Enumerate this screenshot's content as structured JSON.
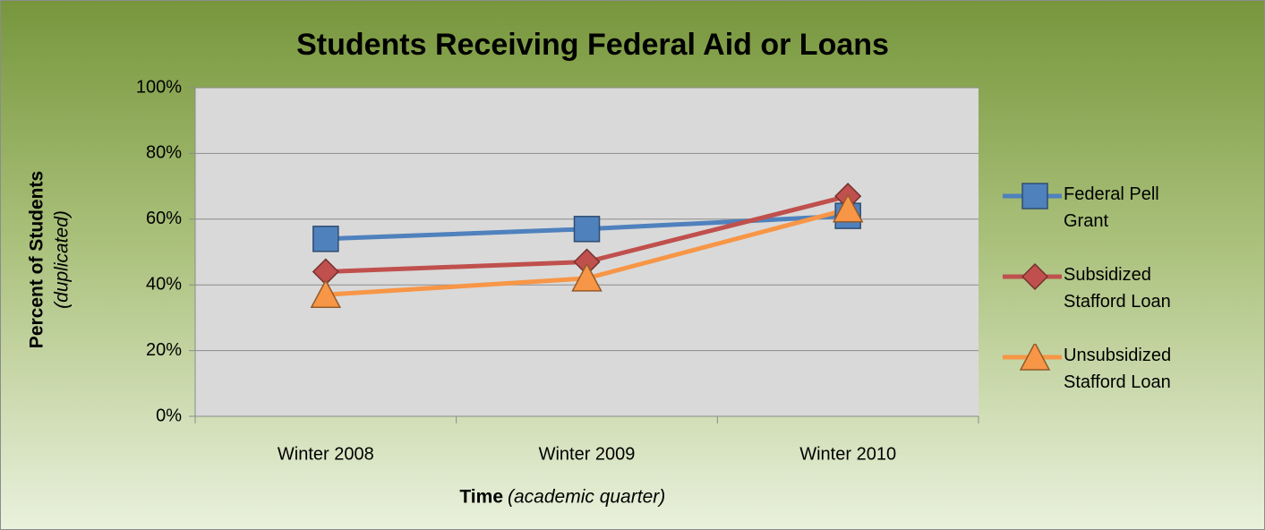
{
  "chart_data": {
    "type": "line",
    "title": "Students Receiving Federal Aid or Loans",
    "ylabel": "Percent of Students",
    "ylabel_note": "(duplicated)",
    "xlabel": "Time",
    "xlabel_note": "(academic quarter)",
    "categories": [
      "Winter 2008",
      "Winter 2009",
      "Winter 2010"
    ],
    "series": [
      {
        "name": "Federal Pell Grant",
        "color": "#4f81bd",
        "marker": "square",
        "values": [
          54,
          57,
          61
        ]
      },
      {
        "name": "Subsidized Stafford Loan",
        "color": "#c0504d",
        "marker": "diamond",
        "values": [
          44,
          47,
          67
        ]
      },
      {
        "name": "Unsubsidized Stafford Loan",
        "color": "#f79646",
        "marker": "triangle",
        "values": [
          37,
          42,
          63
        ]
      }
    ],
    "ylim": [
      0,
      100
    ],
    "yticks": [
      {
        "value": 0,
        "label": "0%"
      },
      {
        "value": 20,
        "label": "20%"
      },
      {
        "value": 40,
        "label": "40%"
      },
      {
        "value": 60,
        "label": "60%"
      },
      {
        "value": 80,
        "label": "80%"
      },
      {
        "value": 100,
        "label": "100%"
      }
    ],
    "grid": true,
    "legend": "right"
  }
}
